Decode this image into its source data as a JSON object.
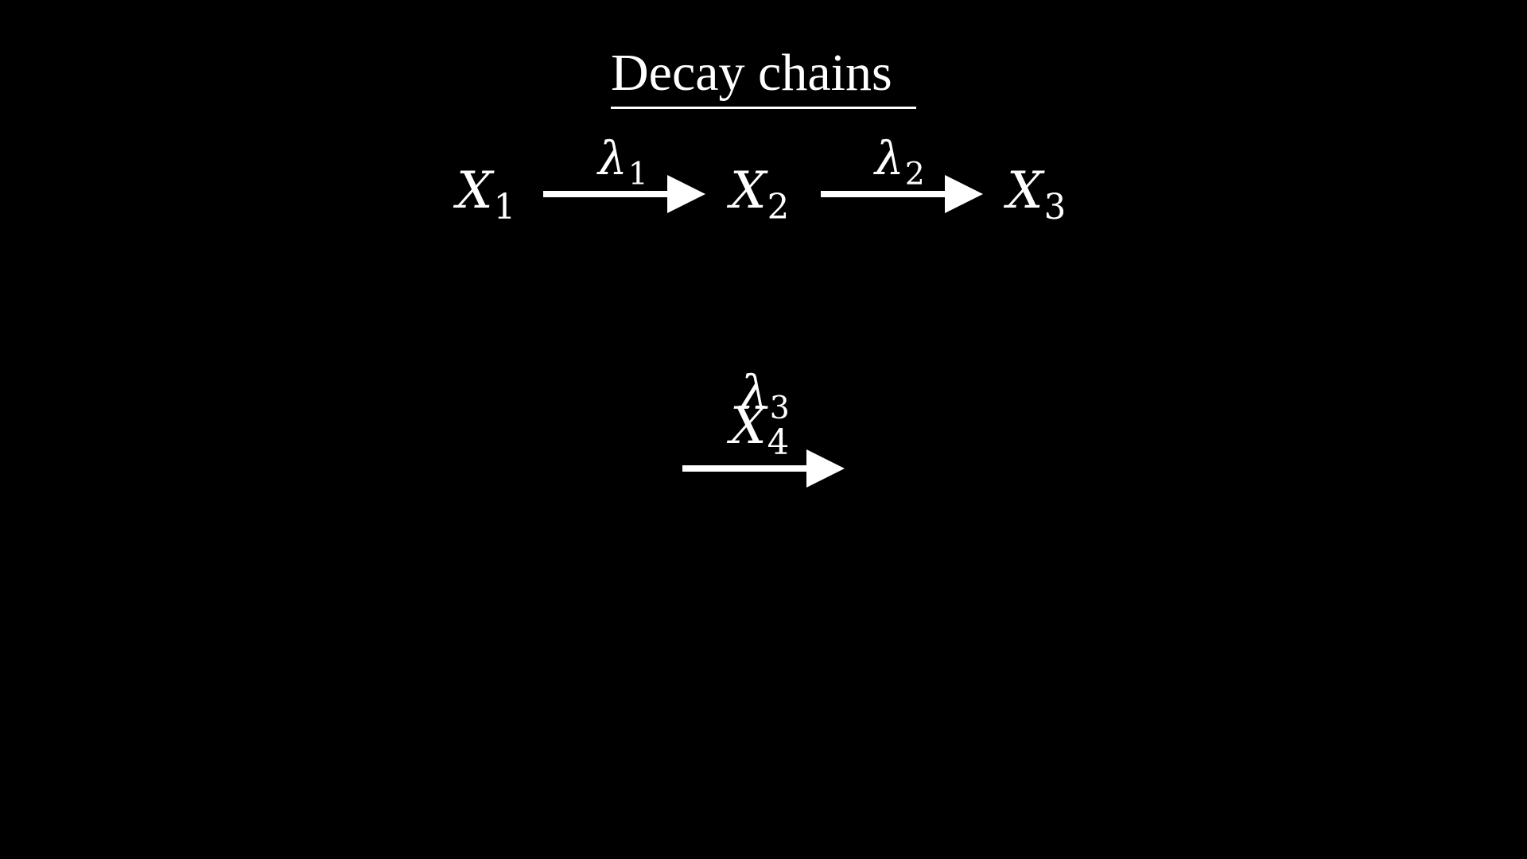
{
  "title": "Decay chains",
  "species": [
    {
      "symbol": "X",
      "subscript": "1"
    },
    {
      "symbol": "X",
      "subscript": "2"
    },
    {
      "symbol": "X",
      "subscript": "3"
    },
    {
      "symbol": "X",
      "subscript": "4"
    }
  ],
  "rates": [
    {
      "symbol": "λ",
      "subscript": "1"
    },
    {
      "symbol": "λ",
      "subscript": "2"
    },
    {
      "symbol": "λ",
      "subscript": "3"
    }
  ],
  "colors": {
    "background": "#000000",
    "foreground": "#ffffff"
  }
}
